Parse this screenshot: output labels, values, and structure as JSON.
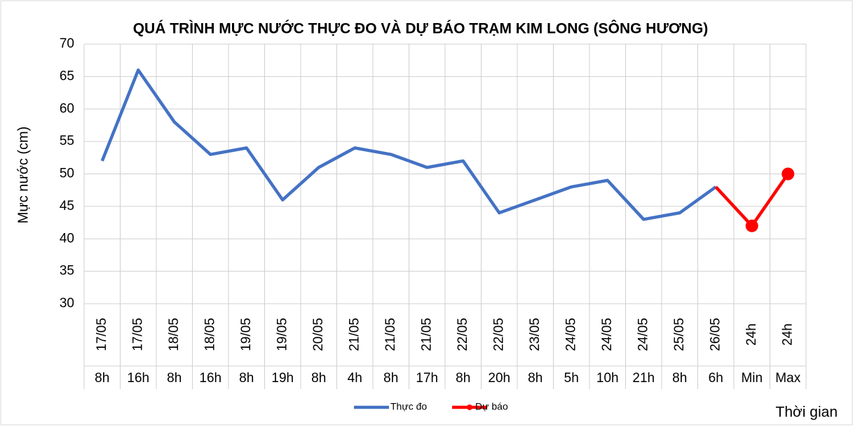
{
  "chart_data": {
    "type": "line",
    "title": "QUÁ TRÌNH MỰC NƯỚC THỰC ĐO VÀ DỰ BÁO TRẠM KIM LONG (SÔNG HƯƠNG)",
    "y_label": "Mực nước (cm)",
    "x_label": "Thời gian",
    "categories": [
      {
        "date": "17/05",
        "hour": "8h"
      },
      {
        "date": "17/05",
        "hour": "16h"
      },
      {
        "date": "18/05",
        "hour": "8h"
      },
      {
        "date": "18/05",
        "hour": "16h"
      },
      {
        "date": "19/05",
        "hour": "8h"
      },
      {
        "date": "19/05",
        "hour": "19h"
      },
      {
        "date": "20/05",
        "hour": "8h"
      },
      {
        "date": "21/05",
        "hour": "4h"
      },
      {
        "date": "21/05",
        "hour": "8h"
      },
      {
        "date": "21/05",
        "hour": "17h"
      },
      {
        "date": "22/05",
        "hour": "8h"
      },
      {
        "date": "22/05",
        "hour": "20h"
      },
      {
        "date": "23/05",
        "hour": "8h"
      },
      {
        "date": "24/05",
        "hour": "5h"
      },
      {
        "date": "24/05",
        "hour": "10h"
      },
      {
        "date": "24/05",
        "hour": "21h"
      },
      {
        "date": "25/05",
        "hour": "8h"
      },
      {
        "date": "26/05",
        "hour": "6h"
      },
      {
        "date": "24h",
        "hour": "Min"
      },
      {
        "date": "24h",
        "hour": "Max"
      }
    ],
    "series": [
      {
        "name": "Thực đo",
        "color": "#4472c4",
        "values": [
          52,
          66,
          58,
          53,
          54,
          46,
          51,
          54,
          53,
          51,
          52,
          44,
          46,
          48,
          49,
          43,
          44,
          48,
          null,
          null
        ]
      },
      {
        "name": "Dự báo",
        "color": "#ff0000",
        "values": [
          null,
          null,
          null,
          null,
          null,
          null,
          null,
          null,
          null,
          null,
          null,
          null,
          null,
          null,
          null,
          null,
          null,
          48,
          42,
          50
        ]
      }
    ],
    "ylim": [
      30,
      70
    ],
    "yticks": [
      30,
      35,
      40,
      45,
      50,
      55,
      60,
      65,
      70
    ],
    "grid": true,
    "legend": "bottom"
  }
}
